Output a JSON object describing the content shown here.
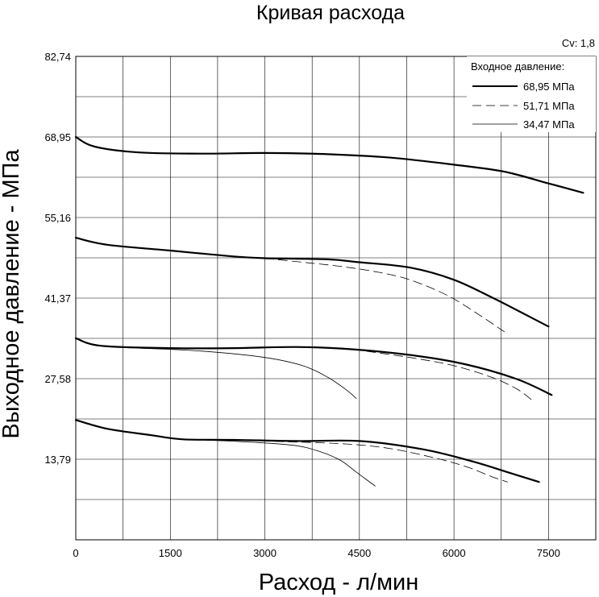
{
  "chart_data": {
    "type": "line",
    "title": "Кривая расхода",
    "xlabel": "Расход - л/мин",
    "ylabel": "Выходное давление - МПа",
    "cv_label": "Cv: 1,8",
    "xlim": [
      0,
      8250
    ],
    "ylim": [
      0,
      82.74
    ],
    "x_ticks": [
      0,
      1500,
      3000,
      4500,
      6000,
      7500
    ],
    "x_tick_labels": [
      "0",
      "1500",
      "3000",
      "4500",
      "6000",
      "7500"
    ],
    "y_ticks": [
      13.79,
      27.58,
      41.37,
      55.16,
      68.95,
      82.74
    ],
    "y_tick_labels": [
      "13,79",
      "27,58",
      "41,37",
      "55,16",
      "68,95",
      "82,74"
    ],
    "grid": true,
    "legend": {
      "title": "Входное давление:",
      "position": "top-right",
      "entries": [
        {
          "label": "68,95 МПа",
          "style": "thick"
        },
        {
          "label": "51,71 МПа",
          "style": "dashed"
        },
        {
          "label": "34,47 МПа",
          "style": "thin"
        }
      ]
    },
    "series": [
      {
        "inlet": "68,95 МПа",
        "style": "thick",
        "points": [
          [
            0,
            68.95
          ],
          [
            300,
            67.3
          ],
          [
            1000,
            66.3
          ],
          [
            2000,
            66.1
          ],
          [
            3000,
            66.2
          ],
          [
            4000,
            66.0
          ],
          [
            5000,
            65.4
          ],
          [
            6000,
            64.2
          ],
          [
            6800,
            63.0
          ],
          [
            7500,
            61.0
          ],
          [
            8050,
            59.4
          ]
        ]
      },
      {
        "inlet": "68,95 МПа",
        "style": "thick",
        "points": [
          [
            0,
            51.7
          ],
          [
            500,
            50.5
          ],
          [
            1500,
            49.5
          ],
          [
            2500,
            48.5
          ],
          [
            3000,
            48.2
          ],
          [
            4000,
            48.0
          ],
          [
            4500,
            47.5
          ],
          [
            5300,
            46.6
          ],
          [
            6000,
            44.5
          ],
          [
            6600,
            41.5
          ],
          [
            7000,
            39.3
          ],
          [
            7500,
            36.5
          ]
        ]
      },
      {
        "inlet": "51,71 МПа",
        "style": "dashed",
        "points": [
          [
            3000,
            48.2
          ],
          [
            3600,
            47.5
          ],
          [
            4200,
            46.8
          ],
          [
            4800,
            45.8
          ],
          [
            5300,
            44.5
          ],
          [
            5900,
            41.8
          ],
          [
            6400,
            38.5
          ],
          [
            6800,
            35.6
          ]
        ]
      },
      {
        "inlet": "68,95 МПа",
        "style": "thick",
        "points": [
          [
            0,
            34.5
          ],
          [
            400,
            33.2
          ],
          [
            1500,
            32.8
          ],
          [
            2500,
            32.8
          ],
          [
            3500,
            33.0
          ],
          [
            4400,
            32.6
          ],
          [
            5400,
            31.5
          ],
          [
            6200,
            30.0
          ],
          [
            7000,
            27.5
          ],
          [
            7550,
            24.8
          ]
        ]
      },
      {
        "inlet": "51,71 МПа",
        "style": "dashed",
        "points": [
          [
            4400,
            32.6
          ],
          [
            5300,
            31.2
          ],
          [
            6000,
            29.8
          ],
          [
            6600,
            27.8
          ],
          [
            7000,
            25.8
          ],
          [
            7250,
            23.8
          ]
        ]
      },
      {
        "inlet": "34,47 МПа",
        "style": "thin",
        "points": [
          [
            1000,
            32.8
          ],
          [
            2000,
            32.3
          ],
          [
            3000,
            31.2
          ],
          [
            3600,
            29.8
          ],
          [
            4000,
            27.8
          ],
          [
            4300,
            25.6
          ],
          [
            4450,
            24.2
          ]
        ]
      },
      {
        "inlet": "68,95 МПа",
        "style": "thick",
        "points": [
          [
            0,
            20.5
          ],
          [
            500,
            19.0
          ],
          [
            1200,
            17.9
          ],
          [
            1700,
            17.2
          ],
          [
            2500,
            17.1
          ],
          [
            3500,
            16.9
          ],
          [
            4500,
            16.9
          ],
          [
            5500,
            15.5
          ],
          [
            6300,
            13.4
          ],
          [
            6900,
            11.4
          ],
          [
            7350,
            9.9
          ]
        ]
      },
      {
        "inlet": "51,71 МПа",
        "style": "dashed",
        "points": [
          [
            2500,
            17.1
          ],
          [
            3300,
            16.8
          ],
          [
            4300,
            16.4
          ],
          [
            5000,
            15.6
          ],
          [
            5700,
            14.0
          ],
          [
            6200,
            12.5
          ],
          [
            6600,
            10.8
          ],
          [
            6850,
            9.9
          ]
        ]
      },
      {
        "inlet": "34,47 МПа",
        "style": "thin",
        "points": [
          [
            2000,
            17.1
          ],
          [
            2800,
            16.7
          ],
          [
            3500,
            16.1
          ],
          [
            3900,
            15.0
          ],
          [
            4200,
            13.6
          ],
          [
            4450,
            11.6
          ],
          [
            4650,
            10.0
          ],
          [
            4750,
            9.2
          ]
        ]
      }
    ]
  }
}
